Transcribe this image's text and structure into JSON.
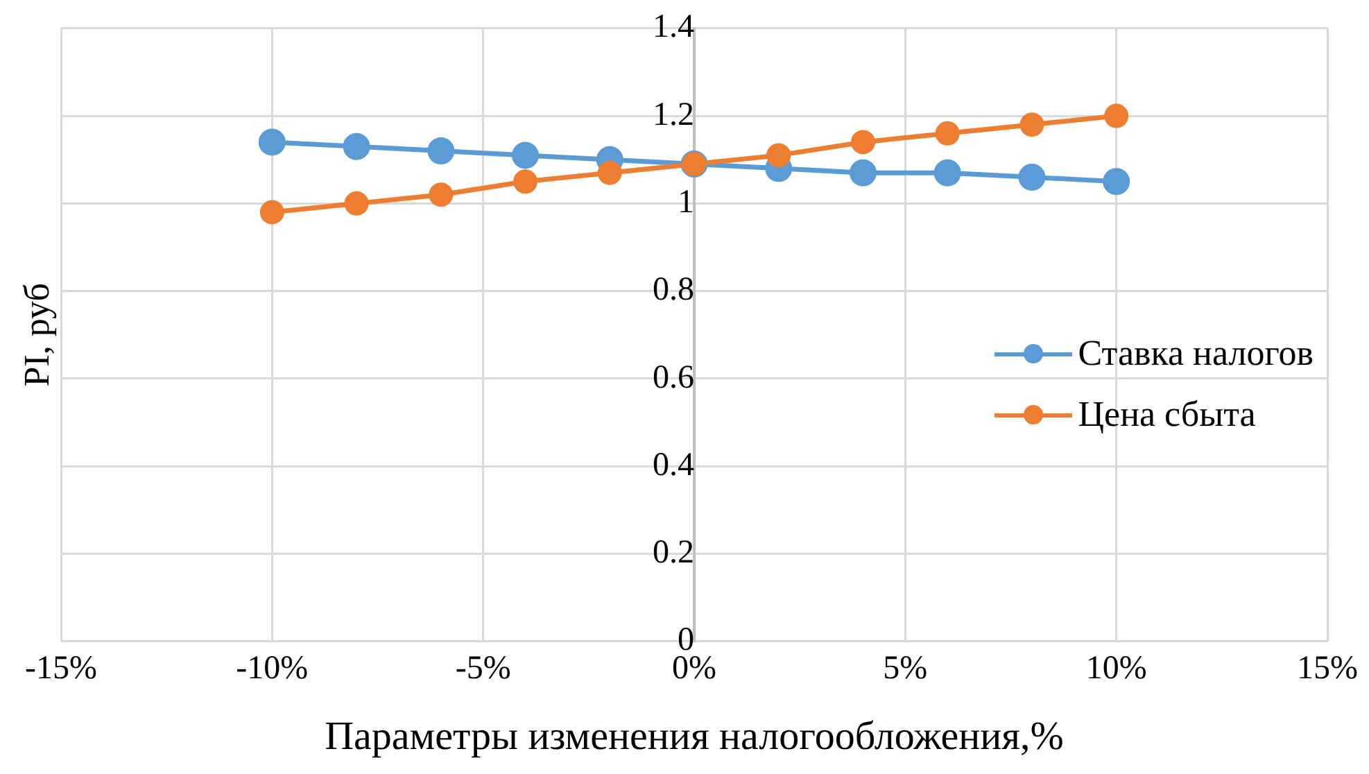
{
  "chart_data": {
    "type": "line",
    "xlabel": "Параметры изменения налогообложения,%",
    "ylabel": "PI, руб",
    "x": [
      -10,
      -8,
      -6,
      -4,
      -2,
      0,
      2,
      4,
      6,
      8,
      10
    ],
    "series": [
      {
        "name": "Ставка налогов",
        "color": "#5b9bd5",
        "values": [
          1.14,
          1.13,
          1.12,
          1.11,
          1.1,
          1.09,
          1.08,
          1.07,
          1.07,
          1.06,
          1.05
        ]
      },
      {
        "name": "Цена сбыта",
        "color": "#ed7d31",
        "values": [
          0.98,
          1.0,
          1.02,
          1.05,
          1.07,
          1.09,
          1.11,
          1.14,
          1.16,
          1.18,
          1.2
        ]
      }
    ],
    "xlim": [
      -15,
      15
    ],
    "xticks": [
      {
        "value": -15,
        "label": "-15%"
      },
      {
        "value": -10,
        "label": "-10%"
      },
      {
        "value": -5,
        "label": "-5%"
      },
      {
        "value": 0,
        "label": "0%"
      },
      {
        "value": 5,
        "label": "5%"
      },
      {
        "value": 10,
        "label": "10%"
      },
      {
        "value": 15,
        "label": "15%"
      }
    ],
    "ylim": [
      0,
      1.4
    ],
    "yticks": [
      0,
      0.2,
      0.4,
      0.6,
      0.8,
      1,
      1.2,
      1.4
    ],
    "grid": true,
    "legend": "right",
    "marker": "circle",
    "line_style": "solid"
  }
}
